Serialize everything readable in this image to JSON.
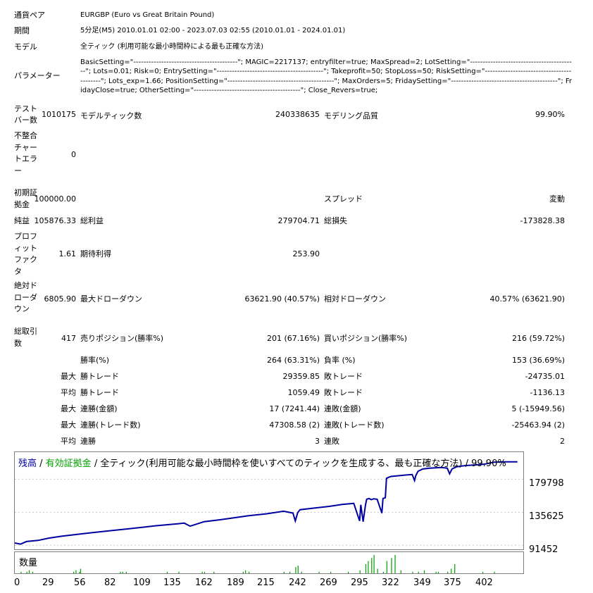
{
  "rows": {
    "symbol": {
      "label": "通貨ペア",
      "value": "EURGBP (Euro vs Great Britain Pound)"
    },
    "period": {
      "label": "期間",
      "value": "5分足(M5) 2010.01.01 02:00 - 2023.07.03 02:55 (2010.01.01 - 2024.01.01)"
    },
    "model": {
      "label": "モデル",
      "value": "全ティック (利用可能な最小時間枠による最も正確な方法)"
    },
    "params": {
      "label": "パラメーター",
      "value": "BasicSetting=\"-----------------------------------------\"; MAGIC=2217137; entryfilter=true; MaxSpread=2; LotSetting=\"------------------------------------------\"; Lots=0.01; Risk=0; EntrySetting=\"------------------------------------------\"; Takeprofit=50; StopLoss=50; RiskSetting=\"------------------------------------------\"; Lots_exp=1.66; PositionSetting=\"------------------------------------------\"; MaxOrders=5; FridaySetting=\"------------------------------------------\"; FridayClose=true; OtherSetting=\"------------------------------------------\"; Close_Revers=true;"
    }
  },
  "stats": {
    "bars_label": "テスト\nバー数",
    "bars": "1010175",
    "ticks_label": "モデルティック数",
    "ticks": "240338635",
    "quality_label": "モデリング品質",
    "quality": "99.90%",
    "mismatch_label": "不整合\nチャー\nトエラ\nー",
    "mismatch": "0",
    "deposit_label": "初期証\n拠金",
    "deposit": "100000.00",
    "spread_label": "スプレッド",
    "spread": "変動",
    "net_label": "純益",
    "net": "105876.33",
    "gross_profit_label": "総利益",
    "gross_profit": "279704.71",
    "gross_loss_label": "総損失",
    "gross_loss": "-173828.38",
    "pf_label": "プロフ\nィット\nファク\nタ",
    "pf": "1.61",
    "expected_label": "期待利得",
    "expected": "253.90",
    "abs_dd_label": "絶対ド\nローダ\nウン",
    "abs_dd": "6805.90",
    "max_dd_label": "最大ドローダウン",
    "max_dd": "63621.90 (40.57%)",
    "rel_dd_label": "相対ドローダウン",
    "rel_dd": "40.57% (63621.90)",
    "trades_label": "総取引\n数",
    "trades": "417",
    "short_label": "売りポジション(勝率%)",
    "short": "201 (67.16%)",
    "long_label": "買いポジション(勝率%)",
    "long": "216 (59.72%)",
    "win_rate_label": "勝率(%)",
    "win_rate": "264 (63.31%)",
    "loss_rate_label": "負率 (%)",
    "loss_rate": "153 (36.69%)",
    "max_prefix": "最大",
    "avg_prefix": "平均",
    "largest_win_label": "勝トレード",
    "largest_win": "29359.85",
    "largest_loss_label": "敗トレード",
    "largest_loss": "-24735.01",
    "avg_win_label": "勝トレード",
    "avg_win": "1059.49",
    "avg_loss_label": "敗トレード",
    "avg_loss": "-1136.13",
    "max_consec_win_money_label": "連勝(金額)",
    "max_consec_win_money": "17 (7241.44)",
    "max_consec_loss_money_label": "連敗(金額)",
    "max_consec_loss_money": "5 (-15949.56)",
    "max_consec_win_profit_label": "連勝(トレード数)",
    "max_consec_win_profit": "47308.58 (2)",
    "max_consec_loss_profit_label": "連敗(トレード数)",
    "max_consec_loss_profit": "-25463.94 (2)",
    "avg_consec_win_label": "連勝",
    "avg_consec_win": "3",
    "avg_consec_loss_label": "連敗",
    "avg_consec_loss": "2"
  },
  "chart": {
    "title_balance": "残高",
    "title_sep1": " / ",
    "title_equity": "有効証拠金",
    "title_rest": " / 全ティック(利用可能な最小時間枠を使いすべてのティックを生成する、最も正確な方法) / 99.90%",
    "balance_color": "#0000a0",
    "equity_color": "#00a000",
    "volume_label": "数量",
    "y_ticks": [
      "179798",
      "135625",
      "91452"
    ]
  },
  "chart_data": {
    "type": "line",
    "title": "残高 / 有効証拠金 / 全ティック(利用可能な最小時間枠を使いすべてのティックを生成する、最も正確な方法) / 99.90%",
    "xlabel": "",
    "ylabel": "",
    "x_ticks": [
      "0",
      "29",
      "56",
      "82",
      "109",
      "135",
      "162",
      "189",
      "215",
      "242",
      "269",
      "295",
      "322",
      "349",
      "375",
      "402"
    ],
    "y_ticks": [
      179798,
      135625,
      91452
    ],
    "ylim": [
      86000,
      216000
    ],
    "xlim": [
      0,
      435
    ],
    "series": [
      {
        "name": "残高",
        "x": [
          0,
          5,
          10,
          20,
          29,
          40,
          56,
          70,
          82,
          95,
          109,
          120,
          135,
          145,
          150,
          162,
          175,
          189,
          200,
          215,
          230,
          238,
          240,
          242,
          244,
          255,
          269,
          280,
          290,
          295,
          296,
          298,
          300,
          301,
          303,
          305,
          307,
          310,
          314,
          315,
          317,
          318,
          320,
          322,
          325,
          335,
          340,
          342,
          343,
          345,
          349,
          355,
          365,
          370,
          372,
          374,
          378,
          385,
          395,
          402,
          410,
          420,
          430
        ],
        "values": [
          94500,
          93000,
          96500,
          98000,
          101000,
          103500,
          106500,
          109000,
          111000,
          113000,
          115500,
          117500,
          119500,
          121000,
          117000,
          123000,
          125500,
          128500,
          131000,
          133500,
          137000,
          134500,
          124000,
          135000,
          139000,
          141000,
          143500,
          146000,
          147500,
          124000,
          145500,
          123000,
          145000,
          153000,
          154000,
          152500,
          153500,
          153000,
          134500,
          154000,
          155000,
          181000,
          182500,
          183500,
          184000,
          185500,
          186000,
          178000,
          184500,
          190500,
          193500,
          194500,
          195500,
          194500,
          187000,
          193500,
          196500,
          198000,
          199000,
          200000,
          202500,
          203000,
          203000
        ]
      },
      {
        "name": "有効証拠金",
        "values": []
      }
    ],
    "volume": {
      "x": [
        5,
        10,
        12,
        15,
        50,
        52,
        55,
        56,
        90,
        92,
        95,
        130,
        140,
        160,
        162,
        170,
        195,
        197,
        200,
        230,
        235,
        240,
        242,
        245,
        260,
        270,
        285,
        295,
        300,
        302,
        305,
        307,
        310,
        315,
        318,
        322,
        325,
        330,
        340,
        345,
        350,
        360,
        362,
        370,
        373,
        376,
        400,
        410
      ],
      "values": [
        1,
        1,
        2,
        1,
        1,
        2,
        1,
        3,
        1,
        1,
        1,
        1,
        1,
        1,
        1,
        1,
        1,
        2,
        1,
        1,
        1,
        4,
        5,
        1,
        1,
        1,
        1,
        2,
        6,
        8,
        10,
        12,
        3,
        1,
        8,
        10,
        12,
        2,
        1,
        1,
        2,
        1,
        1,
        1,
        3,
        6,
        1,
        1
      ]
    }
  }
}
